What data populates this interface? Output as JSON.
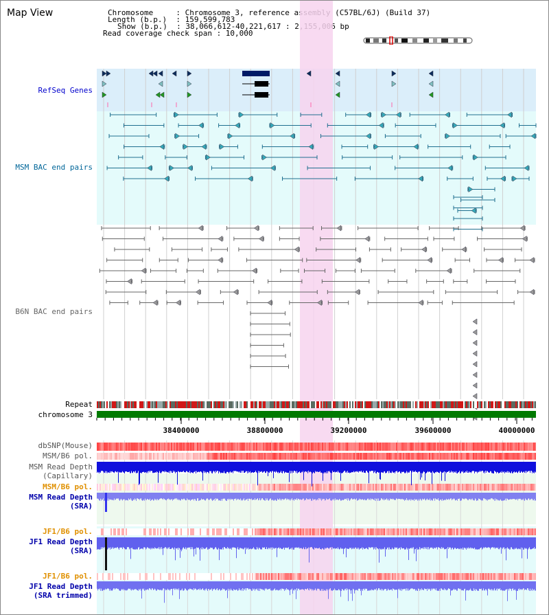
{
  "view": {
    "title": "Map View",
    "info_lines": [
      "Chromosome     : Chromosome 3, reference assembly (C57BL/6J) (Build 37)",
      "Length (b.p.)  : 159,599,783",
      "Show (b.p.)  : 38,066,612-40,221,617 : 2,155,006 bp",
      "Read coverage check span : 10,000"
    ]
  },
  "tracks": {
    "refseq": "RefSeq Genes",
    "msm_bac": "MSM BAC end pairs",
    "b6n_bac": "B6N BAC end pairs",
    "repeat": "Repeat",
    "chromosome": "chromosome 3",
    "dbsnp": "dbSNP(Mouse)",
    "msm_b6_pol_1": "MSM/B6 pol.",
    "msm_depth_cap_1": "MSM Read Depth",
    "msm_depth_cap_2": "(Capillary)",
    "msm_b6_pol_2": "MSM/B6 pol.",
    "msm_depth_sra_1": "MSM Read Depth",
    "msm_depth_sra_2": "(SRA)",
    "jf1_b6_pol_1": "JF1/B6 pol.",
    "jf1_depth_sra_1": "JF1 Read Depth",
    "jf1_depth_sra_2": "(SRA)",
    "jf1_b6_pol_2": "JF1/B6 pol.",
    "jf1_depth_trim_1": "JF1 Read Depth",
    "jf1_depth_trim_2": "(SRA trimmed)"
  },
  "axis": {
    "ticks": [
      "38400000",
      "38800000",
      "39200000",
      "39600000",
      "40000000"
    ]
  },
  "colors": {
    "refseq_bg": "#dbeefa",
    "msm_bg": "#e4fbfb",
    "highlight": "#f7d4ef",
    "refseq_label": "#0000cc",
    "msm_label": "#006699",
    "b6n_label": "#666666",
    "pol_label": "#e09000",
    "depth_label": "#0000aa",
    "chromosome_bar": "#007a00"
  }
}
